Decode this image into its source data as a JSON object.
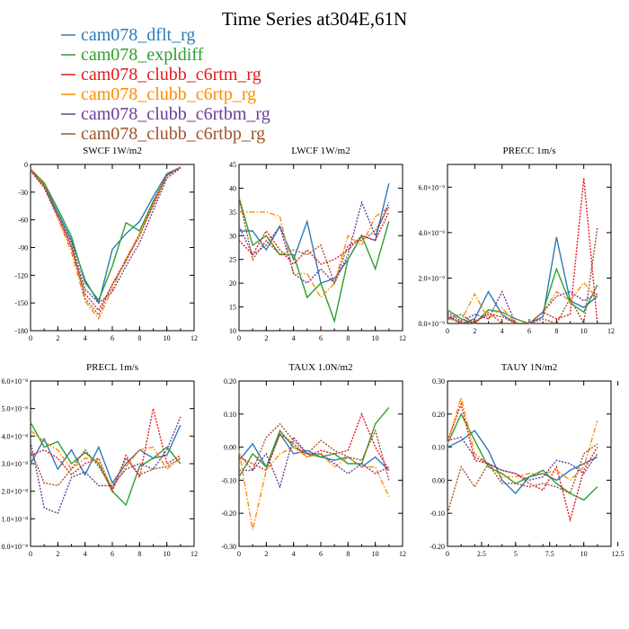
{
  "figure": {
    "title": "Time Series at304E,61N"
  },
  "legend": [
    {
      "name": "cam078_dflt_rg",
      "color": "#2b7bb9"
    },
    {
      "name": "cam078_expldiff",
      "color": "#2ca02c"
    },
    {
      "name": "cam078_clubb_c6rtm_rg",
      "color": "#e31a1c"
    },
    {
      "name": "cam078_clubb_c6rtp_rg",
      "color": "#ff8c00"
    },
    {
      "name": "cam078_clubb_c6rtbm_rg",
      "color": "#6a3d9a"
    },
    {
      "name": "cam078_clubb_c6rtbp_rg",
      "color": "#a0522d"
    }
  ],
  "chart_data": [
    {
      "type": "line",
      "title": "SWCF 1W/m2",
      "x": [
        0,
        1,
        2,
        3,
        4,
        5,
        6,
        7,
        8,
        9,
        10,
        11
      ],
      "xlim": [
        0,
        12
      ],
      "ylim": [
        -180,
        0
      ],
      "xticks": [
        0,
        2,
        4,
        6,
        8,
        10,
        12
      ],
      "yticks": [
        0,
        -30,
        -60,
        -90,
        -120,
        -150,
        -180
      ],
      "ytick_labels": [
        "0",
        "-30",
        "-60",
        "-90",
        "-120",
        "-150",
        "-180"
      ],
      "series": [
        {
          "name": "cam078_dflt_rg",
          "values": [
            -5,
            -22,
            -52,
            -82,
            -125,
            -150,
            -92,
            -75,
            -62,
            -35,
            -10,
            -3
          ]
        },
        {
          "name": "cam078_expldiff",
          "values": [
            -5,
            -20,
            -48,
            -78,
            -128,
            -147,
            -110,
            -63,
            -72,
            -40,
            -12,
            -3
          ]
        },
        {
          "name": "cam078_clubb_c6rtm_rg",
          "values": [
            -7,
            -25,
            -58,
            -90,
            -140,
            -158,
            -130,
            -105,
            -75,
            -45,
            -12,
            -3
          ]
        },
        {
          "name": "cam078_clubb_c6rtp_rg",
          "values": [
            -5,
            -22,
            -58,
            -95,
            -148,
            -167,
            -135,
            -102,
            -75,
            -42,
            -12,
            -3
          ]
        },
        {
          "name": "cam078_clubb_c6rtbm_rg",
          "values": [
            -6,
            -25,
            -55,
            -85,
            -135,
            -150,
            -138,
            -110,
            -85,
            -50,
            -15,
            -4
          ]
        },
        {
          "name": "cam078_clubb_c6rtbp_rg",
          "values": [
            -5,
            -23,
            -55,
            -88,
            -145,
            -163,
            -130,
            -103,
            -78,
            -42,
            -12,
            -3
          ]
        }
      ]
    },
    {
      "type": "line",
      "title": "LWCF 1W/m2",
      "x": [
        0,
        1,
        2,
        3,
        4,
        5,
        6,
        7,
        8,
        9,
        10,
        11
      ],
      "xlim": [
        0,
        12
      ],
      "ylim": [
        10,
        45
      ],
      "xticks": [
        0,
        2,
        4,
        6,
        8,
        10,
        12
      ],
      "yticks": [
        10,
        15,
        20,
        25,
        30,
        35,
        40,
        45
      ],
      "ytick_labels": [
        "10",
        "15",
        "20",
        "25",
        "30",
        "35",
        "40",
        "45"
      ],
      "series": [
        {
          "name": "cam078_dflt_rg",
          "values": [
            31,
            31,
            27,
            32,
            25,
            33,
            20,
            21,
            25,
            30,
            29,
            41
          ]
        },
        {
          "name": "cam078_expldiff",
          "values": [
            38,
            28,
            30,
            26,
            26,
            17,
            20,
            12,
            25,
            30,
            23,
            33
          ]
        },
        {
          "name": "cam078_clubb_c6rtm_rg",
          "values": [
            29,
            26,
            31,
            27,
            24,
            27,
            24,
            25,
            27,
            30,
            29,
            35
          ]
        },
        {
          "name": "cam078_clubb_c6rtp_rg",
          "values": [
            35,
            35,
            35,
            34,
            22,
            22,
            17,
            20,
            30,
            28,
            34,
            36
          ]
        },
        {
          "name": "cam078_clubb_c6rtbm_rg",
          "values": [
            32,
            26,
            28,
            32,
            22,
            20,
            23,
            20,
            26,
            37,
            30,
            37
          ]
        },
        {
          "name": "cam078_clubb_c6rtbp_rg",
          "values": [
            38,
            25,
            29,
            26,
            27,
            26,
            28,
            20,
            28,
            29,
            31,
            36
          ]
        }
      ]
    },
    {
      "type": "line",
      "title": "PRECC 1m/s",
      "x": [
        0,
        1,
        2,
        3,
        4,
        5,
        6,
        7,
        8,
        9,
        10,
        11
      ],
      "xlim": [
        0,
        12
      ],
      "ylim": [
        0,
        7e-09
      ],
      "xticks": [
        0,
        2,
        4,
        6,
        8,
        10,
        12
      ],
      "yticks": [
        0,
        2e-09,
        4e-09,
        6e-09
      ],
      "ytick_labels": [
        "0.0×10⁻⁹",
        "2.0×10⁻⁹",
        "4.0×10⁻⁹",
        "6.0×10⁻⁹"
      ],
      "series": [
        {
          "name": "cam078_dflt_rg",
          "values": [
            3e-10,
            0,
            2e-10,
            1.4e-09,
            4e-10,
            0,
            0,
            3e-10,
            3.8e-09,
            1e-09,
            7e-10,
            1.2e-09
          ]
        },
        {
          "name": "cam078_expldiff",
          "values": [
            6e-10,
            2e-10,
            0,
            6e-10,
            5e-10,
            2e-10,
            0,
            5e-10,
            2.4e-09,
            9e-10,
            5e-10,
            1.7e-09
          ]
        },
        {
          "name": "cam078_clubb_c6rtm_rg",
          "values": [
            4e-10,
            0,
            1e-10,
            4e-10,
            3e-10,
            0,
            0,
            5e-10,
            2e-10,
            4e-10,
            6.4e-09,
            0
          ]
        },
        {
          "name": "cam078_clubb_c6rtp_rg",
          "values": [
            2e-10,
            1e-10,
            1.3e-09,
            2e-10,
            7e-10,
            0,
            0,
            5e-10,
            1.4e-09,
            1e-09,
            1.8e-09,
            1.1e-09
          ]
        },
        {
          "name": "cam078_clubb_c6rtbm_rg",
          "values": [
            5e-10,
            1e-10,
            4e-10,
            2e-10,
            1.4e-09,
            0,
            0,
            5e-10,
            1.2e-09,
            1.4e-09,
            1e-09,
            1.3e-09
          ]
        },
        {
          "name": "cam078_clubb_c6rtbp_rg",
          "values": [
            2e-10,
            4e-10,
            0,
            5e-10,
            0,
            0,
            0,
            2e-10,
            0,
            1.1e-09,
            0,
            4.2e-09
          ]
        }
      ]
    },
    {
      "type": "line",
      "title": "PRECL 1m/s",
      "x": [
        0,
        1,
        2,
        3,
        4,
        5,
        6,
        7,
        8,
        9,
        10,
        11
      ],
      "xlim": [
        0,
        12
      ],
      "ylim": [
        0,
        6e-08
      ],
      "xticks": [
        0,
        2,
        4,
        6,
        8,
        10,
        12
      ],
      "yticks": [
        0,
        1e-08,
        2e-08,
        3e-08,
        4e-08,
        5e-08,
        6e-08
      ],
      "ytick_labels": [
        "0.0×10⁻⁸",
        "1.0×10⁻⁸",
        "2.0×10⁻⁸",
        "3.0×10⁻⁸",
        "4.0×10⁻⁸",
        "5.0×10⁻⁸",
        "6.0×10⁻⁸"
      ],
      "series": [
        {
          "name": "cam078_dflt_rg",
          "values": [
            3e-08,
            3.9e-08,
            2.8e-08,
            3.5e-08,
            2.6e-08,
            3.6e-08,
            2.3e-08,
            3e-08,
            3.5e-08,
            3.2e-08,
            3.3e-08,
            4.4e-08
          ]
        },
        {
          "name": "cam078_expldiff",
          "values": [
            4.5e-08,
            3.6e-08,
            3.8e-08,
            3e-08,
            3.4e-08,
            3e-08,
            2e-08,
            1.5e-08,
            2.9e-08,
            3.2e-08,
            3.6e-08,
            3e-08
          ]
        },
        {
          "name": "cam078_clubb_c6rtm_rg",
          "values": [
            3.3e-08,
            3.5e-08,
            3.2e-08,
            2.6e-08,
            3e-08,
            3.2e-08,
            2e-08,
            3.3e-08,
            2.5e-08,
            5e-08,
            3e-08,
            3.3e-08
          ]
        },
        {
          "name": "cam078_clubb_c6rtp_rg",
          "values": [
            4.2e-08,
            3.8e-08,
            3.5e-08,
            2.8e-08,
            3.2e-08,
            3.1e-08,
            2.1e-08,
            2.9e-08,
            3.5e-08,
            3.6e-08,
            2.8e-08,
            3.2e-08
          ]
        },
        {
          "name": "cam078_clubb_c6rtbm_rg",
          "values": [
            3.8e-08,
            1.4e-08,
            1.2e-08,
            2.5e-08,
            2.7e-08,
            2.2e-08,
            2.2e-08,
            2.8e-08,
            3e-08,
            2.8e-08,
            3.5e-08,
            4.7e-08
          ]
        },
        {
          "name": "cam078_clubb_c6rtbp_rg",
          "values": [
            3.5e-08,
            2.3e-08,
            2.2e-08,
            2.8e-08,
            3.5e-08,
            2.9e-08,
            2.1e-08,
            3.2e-08,
            2.6e-08,
            2.8e-08,
            2.9e-08,
            3.2e-08
          ]
        }
      ]
    },
    {
      "type": "line",
      "title": "TAUX 1.0N/m2",
      "x": [
        0,
        1,
        2,
        3,
        4,
        5,
        6,
        7,
        8,
        9,
        10,
        11
      ],
      "xlim": [
        0,
        12
      ],
      "ylim": [
        -0.3,
        0.2
      ],
      "xticks": [
        0,
        2,
        4,
        6,
        8,
        10,
        12
      ],
      "yticks": [
        -0.3,
        -0.2,
        -0.1,
        0.0,
        0.1,
        0.2
      ],
      "ytick_labels": [
        "-0.30",
        "-0.20",
        "-0.10",
        "0.00",
        "0.10",
        "0.20"
      ],
      "series": [
        {
          "name": "cam078_dflt_rg",
          "values": [
            -0.04,
            0.01,
            -0.06,
            0.04,
            -0.02,
            -0.01,
            -0.03,
            -0.04,
            -0.03,
            -0.06,
            -0.03,
            -0.07
          ]
        },
        {
          "name": "cam078_expldiff",
          "values": [
            -0.09,
            -0.02,
            -0.06,
            0.05,
            0.0,
            -0.02,
            -0.03,
            -0.02,
            -0.05,
            -0.05,
            0.07,
            0.12
          ]
        },
        {
          "name": "cam078_clubb_c6rtm_rg",
          "values": [
            -0.03,
            -0.05,
            -0.07,
            0.04,
            0.01,
            -0.03,
            -0.01,
            -0.02,
            -0.01,
            0.1,
            0.0,
            -0.07
          ]
        },
        {
          "name": "cam078_clubb_c6rtp_rg",
          "values": [
            -0.01,
            -0.25,
            -0.07,
            -0.02,
            0.0,
            -0.03,
            -0.02,
            -0.06,
            -0.03,
            -0.06,
            -0.06,
            -0.15
          ]
        },
        {
          "name": "cam078_clubb_c6rtbm_rg",
          "values": [
            -0.07,
            -0.07,
            -0.02,
            -0.12,
            0.03,
            -0.02,
            -0.02,
            -0.05,
            -0.08,
            -0.05,
            -0.08,
            -0.06
          ]
        },
        {
          "name": "cam078_clubb_c6rtbp_rg",
          "values": [
            -0.02,
            -0.07,
            0.03,
            0.07,
            0.02,
            -0.02,
            0.02,
            -0.01,
            -0.03,
            -0.04,
            0.05,
            -0.1
          ]
        }
      ]
    },
    {
      "type": "line",
      "title": "TAUY 1N/m2",
      "x": [
        0,
        1,
        2,
        3,
        4,
        5,
        6,
        7,
        8,
        9,
        10,
        11
      ],
      "xlim": [
        0,
        12
      ],
      "ylim": [
        -0.2,
        0.3
      ],
      "xticks": [
        0,
        2.5,
        5,
        7.5,
        10,
        12.5
      ],
      "xtick_labels": [
        "0",
        "2.5",
        "5",
        "7.5",
        "10",
        "12.5"
      ],
      "yticks": [
        -0.2,
        -0.1,
        0.0,
        0.1,
        0.2,
        0.3
      ],
      "ytick_labels": [
        "-0.20",
        "-0.10",
        "0.00",
        "0.10",
        "0.20",
        "0.30"
      ],
      "series": [
        {
          "name": "cam078_dflt_rg",
          "values": [
            0.1,
            0.12,
            0.15,
            0.09,
            0.0,
            -0.04,
            0.01,
            0.02,
            0.0,
            0.03,
            0.05,
            0.07
          ]
        },
        {
          "name": "cam078_expldiff",
          "values": [
            0.11,
            0.2,
            0.12,
            0.04,
            0.02,
            -0.01,
            0.01,
            0.03,
            -0.01,
            -0.04,
            -0.06,
            -0.02
          ]
        },
        {
          "name": "cam078_clubb_c6rtm_rg",
          "values": [
            0.12,
            0.23,
            0.06,
            0.05,
            0.03,
            0.02,
            -0.01,
            -0.03,
            0.04,
            -0.12,
            0.03,
            0.1
          ]
        },
        {
          "name": "cam078_clubb_c6rtp_rg",
          "values": [
            0.11,
            0.25,
            0.08,
            0.05,
            0.01,
            0.01,
            0.02,
            0.02,
            0.03,
            0.0,
            0.04,
            0.18
          ]
        },
        {
          "name": "cam078_clubb_c6rtbm_rg",
          "values": [
            0.12,
            0.13,
            0.07,
            0.05,
            0.03,
            0.02,
            0.0,
            0.01,
            0.06,
            0.05,
            0.02,
            0.08
          ]
        },
        {
          "name": "cam078_clubb_c6rtbp_rg",
          "values": [
            -0.1,
            0.04,
            -0.02,
            0.05,
            -0.01,
            -0.01,
            -0.02,
            -0.01,
            -0.02,
            -0.04,
            0.08,
            0.11
          ]
        }
      ]
    }
  ]
}
